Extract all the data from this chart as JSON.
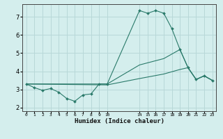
{
  "xlabel": "Humidex (Indice chaleur)",
  "background_color": "#d4eeed",
  "grid_color": "#b8d8d8",
  "line_color": "#2a7a6a",
  "ylim": [
    1.8,
    7.7
  ],
  "yticks": [
    2,
    3,
    4,
    5,
    6,
    7
  ],
  "xlim": [
    -0.5,
    23.5
  ],
  "tick_pos": [
    0,
    1,
    2,
    3,
    4,
    5,
    6,
    7,
    8,
    9,
    10,
    14,
    15,
    16,
    17,
    18,
    19,
    20,
    21,
    22,
    23
  ],
  "tick_labels": [
    "0",
    "1",
    "2",
    "3",
    "4",
    "5",
    "6",
    "7",
    "8",
    "9",
    "10",
    "14",
    "15",
    "16",
    "17",
    "18",
    "19",
    "20",
    "21",
    "22",
    "23"
  ],
  "line1_x": [
    0,
    1,
    2,
    3,
    4,
    5,
    6,
    7,
    8,
    9,
    10,
    14,
    15,
    16,
    17,
    18,
    19,
    20,
    21,
    22,
    23
  ],
  "line1_y": [
    3.3,
    3.1,
    2.95,
    3.05,
    2.85,
    2.5,
    2.35,
    2.7,
    2.75,
    3.3,
    3.3,
    7.35,
    7.2,
    7.35,
    7.2,
    6.35,
    5.2,
    4.2,
    3.55,
    3.75,
    3.5
  ],
  "line2_x": [
    0,
    10,
    14,
    17,
    19,
    20,
    21,
    22,
    23
  ],
  "line2_y": [
    3.3,
    3.3,
    4.35,
    4.7,
    5.2,
    4.2,
    3.55,
    3.75,
    3.5
  ],
  "line3_x": [
    0,
    10,
    14,
    17,
    19,
    20,
    21,
    22,
    23
  ],
  "line3_y": [
    3.3,
    3.25,
    3.6,
    3.85,
    4.1,
    4.2,
    3.55,
    3.75,
    3.5
  ]
}
